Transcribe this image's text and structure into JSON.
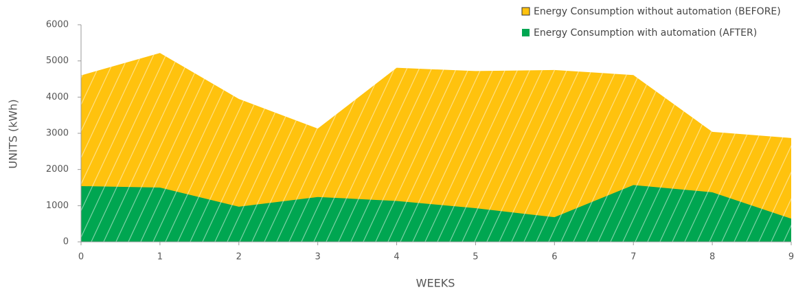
{
  "chart_data": {
    "type": "area",
    "x_label": "WEEKS",
    "y_label": "UNITS (kWh)",
    "x": [
      0,
      1,
      2,
      3,
      4,
      5,
      6,
      7,
      8,
      9
    ],
    "series": [
      {
        "name": "Energy Consumption without automation (BEFORE)",
        "color": "#ffc20e",
        "values": [
          4600,
          5220,
          3950,
          3130,
          4810,
          4720,
          4750,
          4610,
          3040,
          2870
        ]
      },
      {
        "name": "Energy Consumption with automation (AFTER)",
        "color": "#00a651",
        "values": [
          1540,
          1500,
          970,
          1240,
          1130,
          930,
          680,
          1570,
          1370,
          640
        ]
      }
    ],
    "xlim": [
      0,
      9
    ],
    "xticks": [
      0,
      1,
      2,
      3,
      4,
      5,
      6,
      7,
      8,
      9
    ],
    "ylim": [
      0,
      6000
    ],
    "yticks": [
      0,
      1000,
      2000,
      3000,
      4000,
      5000,
      6000
    ],
    "legend": "top-right",
    "hatch": true
  }
}
